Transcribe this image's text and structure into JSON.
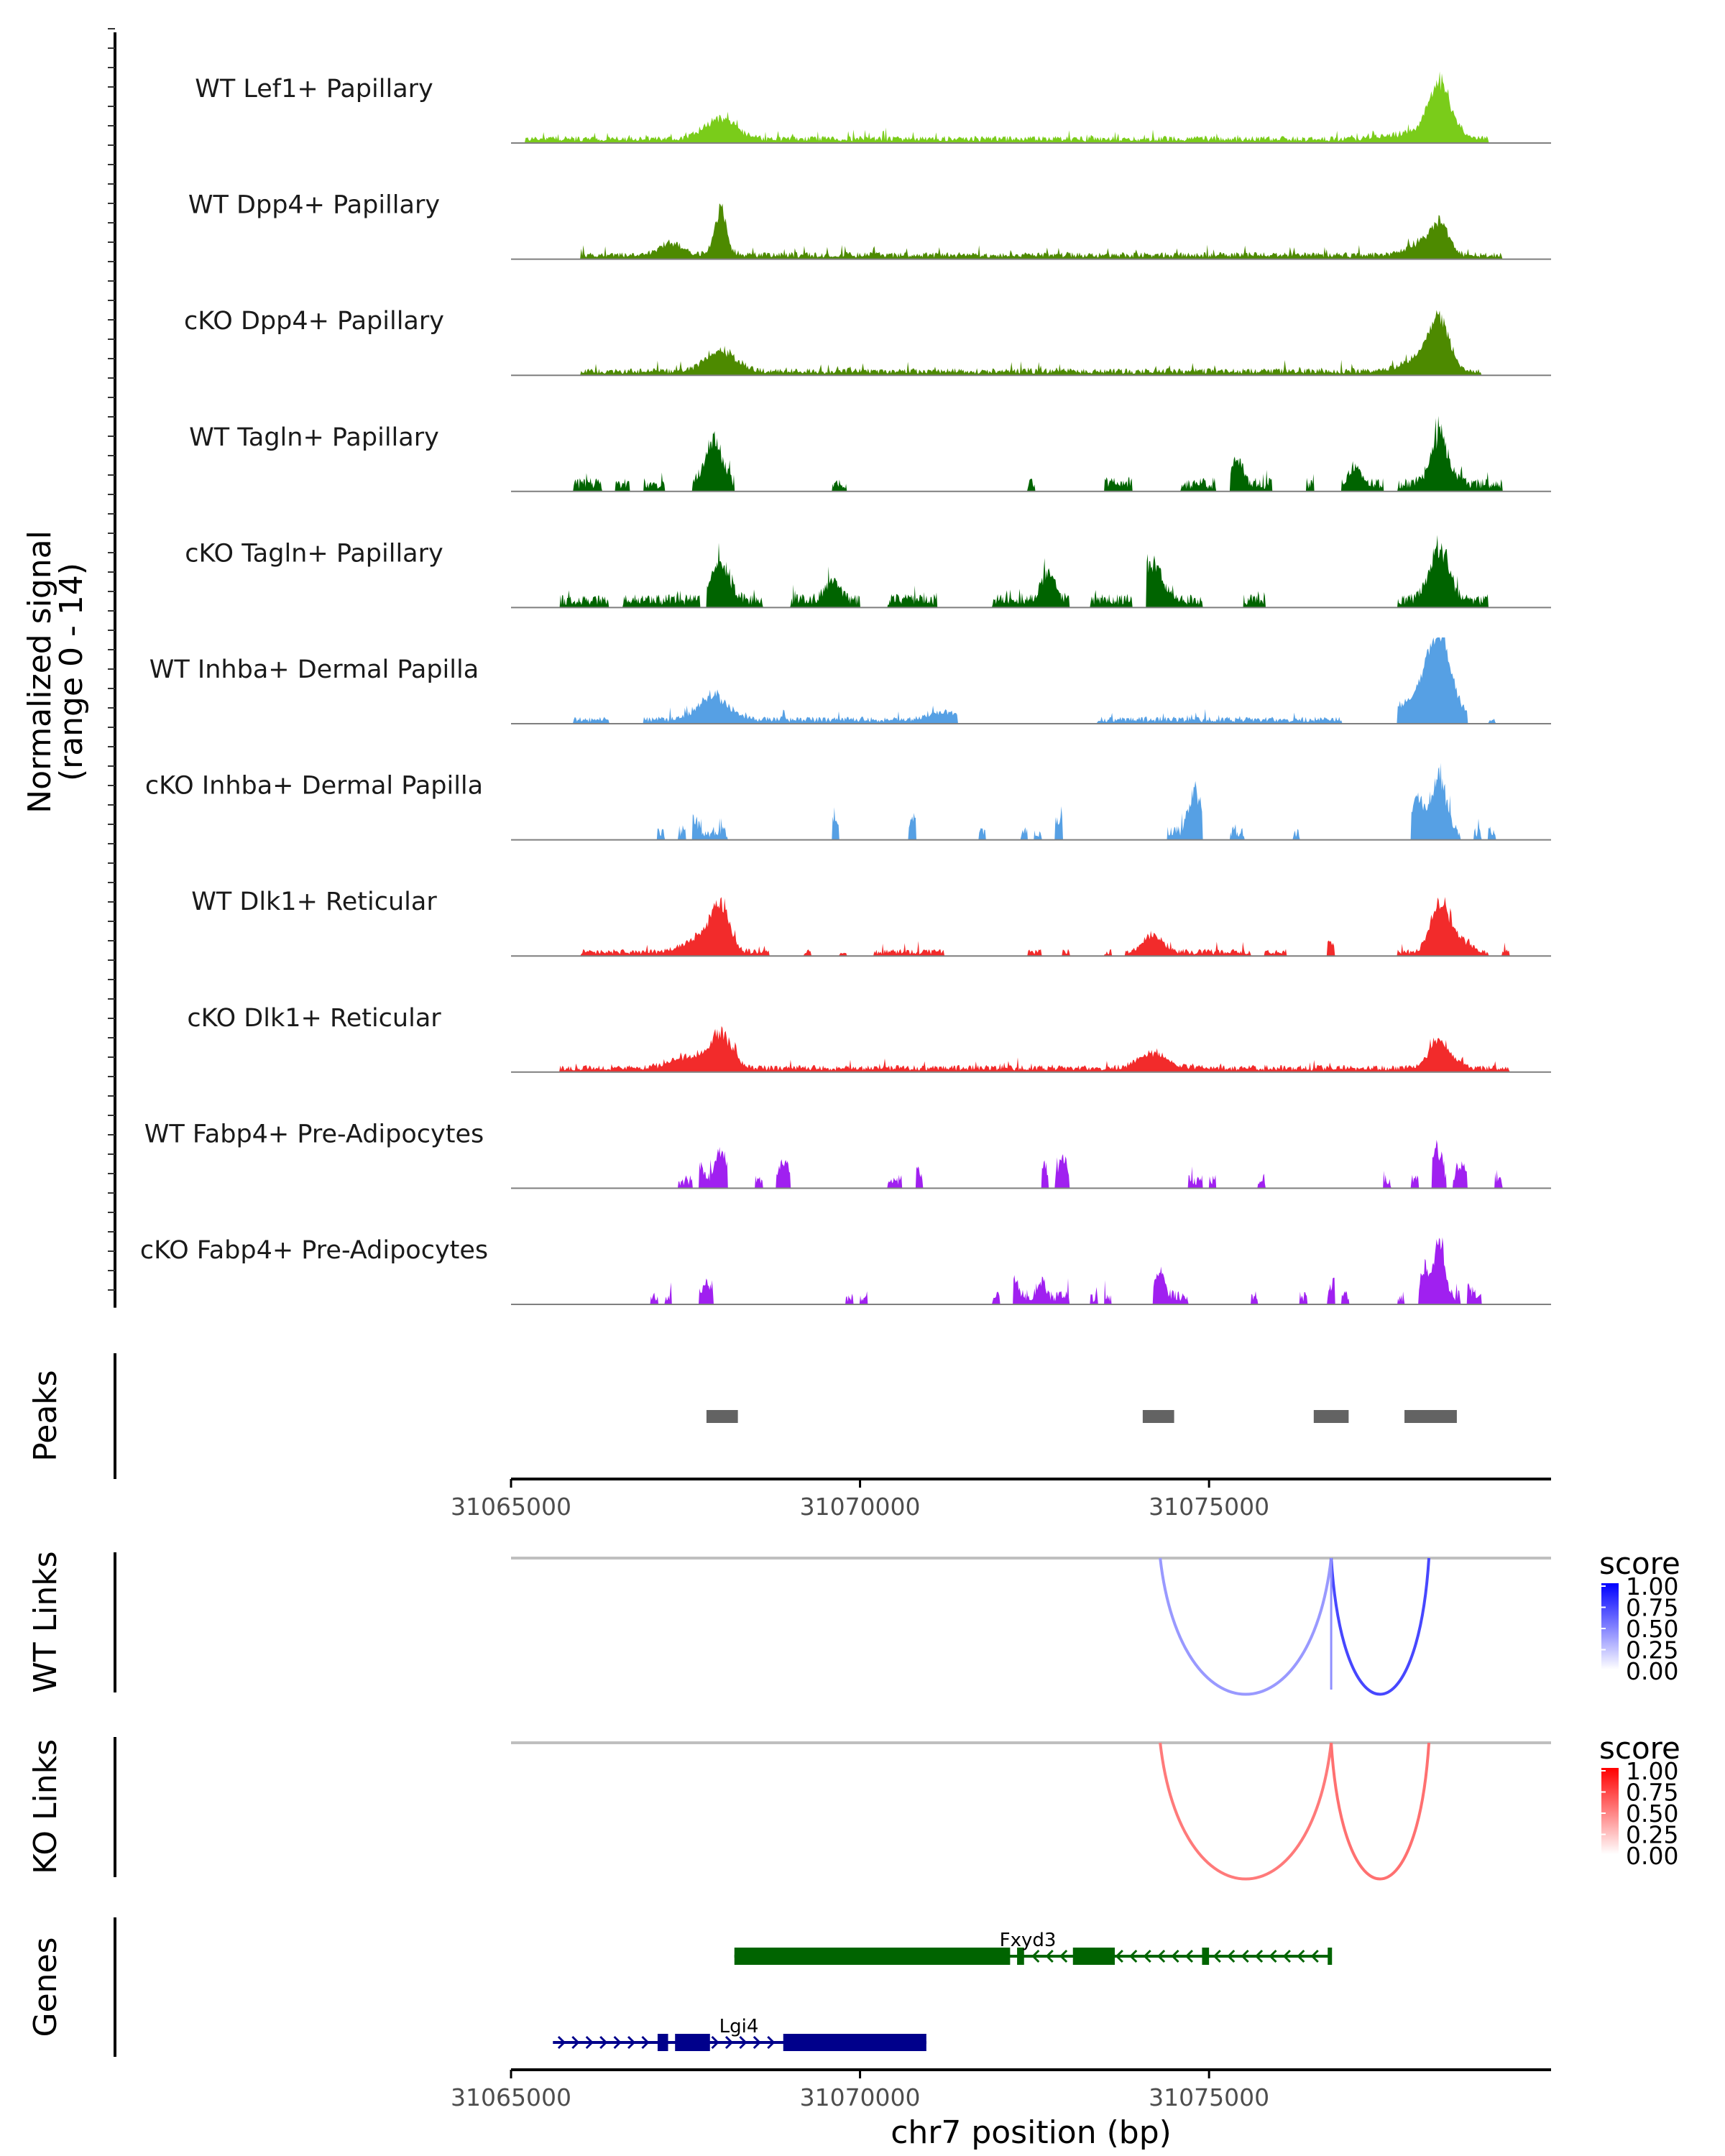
{
  "chart_data": {
    "type": "area",
    "region": {
      "chrom": "chr7",
      "start": 31065000,
      "end": 31079900
    },
    "coverage": {
      "ylabel": [
        "Normalized signal",
        "(range 0 - 14)"
      ],
      "y_range": [
        0,
        14
      ],
      "tracks": [
        {
          "label": "WT Lef1+ Papillary",
          "color": "#7ACC1A",
          "style": "dense",
          "peaks": [
            [
              31068000,
              3.6,
              320
            ],
            [
              31078300,
              9.0,
              220
            ],
            [
              31078050,
              1.2,
              600
            ]
          ],
          "islands": [
            [
              31065200,
              31079000
            ]
          ]
        },
        {
          "label": "WT Dpp4+ Papillary",
          "color": "#4D8A00",
          "style": "dense",
          "peaks": [
            [
              31068000,
              8.0,
              120
            ],
            [
              31067300,
              2.0,
              250
            ],
            [
              31078300,
              5.5,
              180
            ],
            [
              31078000,
              2.0,
              250
            ]
          ],
          "islands": [
            [
              31066000,
              31079200
            ]
          ]
        },
        {
          "label": "cKO Dpp4+ Papillary",
          "color": "#4D8A00",
          "style": "dense",
          "peaks": [
            [
              31068000,
              3.8,
              300
            ],
            [
              31078300,
              8.2,
              200
            ],
            [
              31078050,
              2.5,
              350
            ]
          ],
          "islands": [
            [
              31066000,
              31078900
            ]
          ]
        },
        {
          "label": "WT Tagln+ Papillary",
          "color": "#006400",
          "style": "spiky",
          "peaks": [
            [
              31067900,
              7.5,
              180
            ],
            [
              31075400,
              4.5,
              120
            ],
            [
              31078300,
              8.5,
              180
            ],
            [
              31077100,
              3.0,
              120
            ]
          ],
          "islands": [
            [
              31065900,
              31066300
            ],
            [
              31066500,
              31066700
            ],
            [
              31066900,
              31067200
            ],
            [
              31067600,
              31068200
            ],
            [
              31069600,
              31069800
            ],
            [
              31072400,
              31072500
            ],
            [
              31073500,
              31073900
            ],
            [
              31074600,
              31075100
            ],
            [
              31075300,
              31075900
            ],
            [
              31076400,
              31076500
            ],
            [
              31076900,
              31077500
            ],
            [
              31077700,
              31078200
            ],
            [
              31078200,
              31079200
            ]
          ]
        },
        {
          "label": "cKO Tagln+ Papillary",
          "color": "#006400",
          "style": "spiky",
          "peaks": [
            [
              31068000,
              6.8,
              180
            ],
            [
              31072700,
              5.0,
              140
            ],
            [
              31074200,
              6.5,
              180
            ],
            [
              31078300,
              9.0,
              200
            ],
            [
              31069600,
              3.0,
              150
            ]
          ],
          "islands": [
            [
              31065700,
              31066400
            ],
            [
              31066600,
              31067700
            ],
            [
              31067800,
              31068600
            ],
            [
              31069000,
              31070000
            ],
            [
              31070400,
              31071100
            ],
            [
              31071900,
              31073000
            ],
            [
              31073300,
              31073900
            ],
            [
              31074100,
              31074900
            ],
            [
              31075500,
              31075800
            ],
            [
              31077700,
              31079000
            ]
          ]
        },
        {
          "label": "WT Inhba+ Dermal Papilla",
          "color": "#56A0E4",
          "style": "dense",
          "peaks": [
            [
              31067900,
              4.2,
              300
            ],
            [
              31078300,
              12.5,
              240
            ],
            [
              31078050,
              4.0,
              400
            ],
            [
              31071200,
              1.2,
              300
            ]
          ],
          "islands": [
            [
              31065900,
              31066400
            ],
            [
              31066900,
              31071400
            ],
            [
              31073400,
              31076900
            ],
            [
              31077700,
              31078700
            ],
            [
              31079000,
              31079100
            ]
          ]
        },
        {
          "label": "cKO Inhba+ Dermal Papilla",
          "color": "#56A0E4",
          "style": "spiky",
          "peaks": [
            [
              31074800,
              7.5,
              120
            ],
            [
              31078300,
              10.0,
              140
            ],
            [
              31078000,
              5.5,
              140
            ],
            [
              31067600,
              2.5,
              100
            ],
            [
              31069650,
              2.5,
              80
            ],
            [
              31070750,
              2.5,
              80
            ],
            [
              31072850,
              2.5,
              80
            ]
          ],
          "islands": [
            [
              31067100,
              31067200
            ],
            [
              31067400,
              31067500
            ],
            [
              31067600,
              31068100
            ],
            [
              31069600,
              31069700
            ],
            [
              31070700,
              31070800
            ],
            [
              31071700,
              31071800
            ],
            [
              31072300,
              31072400
            ],
            [
              31072500,
              31072600
            ],
            [
              31072800,
              31072900
            ],
            [
              31074400,
              31074900
            ],
            [
              31075300,
              31075500
            ],
            [
              31076200,
              31076300
            ],
            [
              31077900,
              31078600
            ],
            [
              31078800,
              31078900
            ],
            [
              31079000,
              31079100
            ]
          ]
        },
        {
          "label": "WT Dlk1+ Reticular",
          "color": "#F22B2B",
          "style": "dense",
          "peaks": [
            [
              31068000,
              8.0,
              180
            ],
            [
              31067700,
              2.5,
              300
            ],
            [
              31074200,
              3.0,
              200
            ],
            [
              31076700,
              2.0,
              150
            ],
            [
              31078300,
              9.0,
              180
            ],
            [
              31078600,
              2.0,
              200
            ]
          ],
          "islands": [
            [
              31066000,
              31068700
            ],
            [
              31069200,
              31069300
            ],
            [
              31069700,
              31069800
            ],
            [
              31070200,
              31071200
            ],
            [
              31072400,
              31072600
            ],
            [
              31072900,
              31073000
            ],
            [
              31073500,
              31073600
            ],
            [
              31073800,
              31075600
            ],
            [
              31075800,
              31076100
            ],
            [
              31076700,
              31076800
            ],
            [
              31077700,
              31079000
            ],
            [
              31079200,
              31079300
            ]
          ]
        },
        {
          "label": "cKO Dlk1+ Reticular",
          "color": "#F22B2B",
          "style": "dense",
          "peaks": [
            [
              31068000,
              6.0,
              220
            ],
            [
              31067500,
              2.0,
              300
            ],
            [
              31074200,
              2.5,
              300
            ],
            [
              31078300,
              4.8,
              220
            ]
          ],
          "islands": [
            [
              31065700,
              31079300
            ]
          ]
        },
        {
          "label": "WT Fabp4+ Pre-Adipocytes",
          "color": "#A020F0",
          "style": "spiky",
          "peaks": [
            [
              31068000,
              5.8,
              100
            ],
            [
              31068900,
              3.5,
              100
            ],
            [
              31072900,
              4.0,
              100
            ],
            [
              31078250,
              5.5,
              100
            ],
            [
              31078600,
              3.0,
              80
            ],
            [
              31067700,
              2.5,
              80
            ],
            [
              31072600,
              3.0,
              80
            ],
            [
              31070800,
              2.5,
              80
            ],
            [
              31075900,
              2.0,
              80
            ]
          ],
          "islands": [
            [
              31067400,
              31067600
            ],
            [
              31067700,
              31068100
            ],
            [
              31068500,
              31068600
            ],
            [
              31068800,
              31069000
            ],
            [
              31070400,
              31070600
            ],
            [
              31070800,
              31070900
            ],
            [
              31072600,
              31072700
            ],
            [
              31072800,
              31073000
            ],
            [
              31074700,
              31074900
            ],
            [
              31075000,
              31075100
            ],
            [
              31075700,
              31075800
            ],
            [
              31077500,
              31077600
            ],
            [
              31077900,
              31078000
            ],
            [
              31078200,
              31078400
            ],
            [
              31078500,
              31078700
            ],
            [
              31079100,
              31079200
            ]
          ]
        },
        {
          "label": "cKO Fabp4+ Pre-Adipocytes",
          "color": "#A020F0",
          "style": "spiky",
          "peaks": [
            [
              31078300,
              9.5,
              100
            ],
            [
              31078100,
              5.0,
              100
            ],
            [
              31074300,
              4.5,
              100
            ],
            [
              31072200,
              3.0,
              80
            ],
            [
              31072600,
              3.0,
              80
            ],
            [
              31076800,
              3.0,
              80
            ],
            [
              31067800,
              2.5,
              80
            ],
            [
              31078700,
              2.0,
              80
            ]
          ],
          "islands": [
            [
              31067000,
              31067100
            ],
            [
              31067200,
              31067300
            ],
            [
              31067700,
              31067900
            ],
            [
              31069800,
              31069900
            ],
            [
              31070000,
              31070100
            ],
            [
              31071900,
              31072000
            ],
            [
              31072200,
              31073000
            ],
            [
              31073300,
              31073400
            ],
            [
              31073500,
              31073600
            ],
            [
              31074200,
              31074700
            ],
            [
              31075600,
              31075700
            ],
            [
              31076300,
              31076400
            ],
            [
              31076700,
              31076800
            ],
            [
              31076900,
              31077000
            ],
            [
              31077700,
              31077800
            ],
            [
              31078000,
              31078600
            ],
            [
              31078700,
              31078900
            ]
          ]
        }
      ]
    },
    "peaks_track": {
      "label": "Peaks",
      "color": "#636363",
      "regions": [
        [
          31067800,
          31068250
        ],
        [
          31074050,
          31074500
        ],
        [
          31076500,
          31077000
        ],
        [
          31077800,
          31078550
        ]
      ]
    },
    "x_axis": {
      "ticks": [
        31065000,
        31070000,
        31075000
      ],
      "tick_labels": [
        "31065000",
        "31070000",
        "31075000"
      ],
      "xlabel": "chr7 position (bp)"
    },
    "link_tracks": [
      {
        "label": "WT Links",
        "legend": {
          "title": "score",
          "ticks": [
            "1.00",
            "0.75",
            "0.50",
            "0.25",
            "0.00"
          ],
          "low": "#FFFFFF",
          "high": "#0000FF"
        },
        "links": [
          {
            "start": 31074300,
            "end": 31076750,
            "score": 0.25
          },
          {
            "start": 31076750,
            "end": 31078150,
            "score": 0.65
          },
          {
            "start": 31076750,
            "end": 31076800,
            "score": 0.3
          }
        ]
      },
      {
        "label": "KO Links",
        "legend": {
          "title": "score",
          "ticks": [
            "1.00",
            "0.75",
            "0.50",
            "0.25",
            "0.00"
          ],
          "low": "#FFFFFF",
          "high": "#FF0000"
        },
        "links": [
          {
            "start": 31074300,
            "end": 31076750,
            "score": 0.4
          },
          {
            "start": 31076750,
            "end": 31078150,
            "score": 0.45
          }
        ]
      }
    ],
    "genes_track": {
      "label": "Genes",
      "genes": [
        {
          "name": "Fxyd3",
          "strand": "-",
          "color": "#006400",
          "start": 31068200,
          "end": 31076750,
          "exons": [
            [
              31068200,
              31072150
            ],
            [
              31072250,
              31072350
            ],
            [
              31073050,
              31073650
            ],
            [
              31074900,
              31075000
            ],
            [
              31076700,
              31076750
            ]
          ]
        },
        {
          "name": "Lgi4",
          "strand": "+",
          "color": "#00008B",
          "start": 31065600,
          "end": 31070950,
          "exons": [
            [
              31067100,
              31067250
            ],
            [
              31067350,
              31067850
            ],
            [
              31068900,
              31070950
            ]
          ]
        }
      ]
    }
  }
}
